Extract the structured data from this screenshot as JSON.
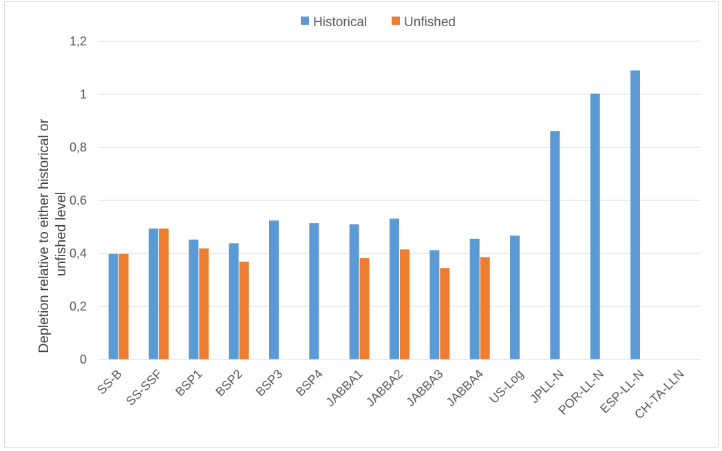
{
  "chart_data": {
    "type": "bar",
    "title": "",
    "xlabel": "",
    "ylabel_lines": [
      "Depletion relative to either historical or",
      "unfished level"
    ],
    "ylim": [
      0,
      1.2
    ],
    "yticks": [
      "0",
      "0,2",
      "0,4",
      "0,6",
      "0,8",
      "1",
      "1,2"
    ],
    "ytick_values": [
      0,
      0.2,
      0.4,
      0.6,
      0.8,
      1.0,
      1.2
    ],
    "grid": true,
    "legend_position": "top-center",
    "categories": [
      "SS-B",
      "SS-SSF",
      "BSP1",
      "BSP2",
      "BSP3",
      "BSP4",
      "JABBA1",
      "JABBA2",
      "JABBA3",
      "JABBA4",
      "US-Log",
      "JPLL-N",
      "POR-LL-N",
      "ESP-LL-N",
      "CH-TA-LLN"
    ],
    "series": [
      {
        "name": "Historical",
        "color": "#5b9bd5",
        "values": [
          0.398,
          0.494,
          0.452,
          0.438,
          0.524,
          0.514,
          0.51,
          0.531,
          0.412,
          0.455,
          0.467,
          0.862,
          1.003,
          1.09,
          null
        ]
      },
      {
        "name": "Unfished",
        "color": "#ed7d31",
        "values": [
          0.398,
          0.494,
          0.419,
          0.369,
          null,
          null,
          0.382,
          0.415,
          0.345,
          0.386,
          null,
          null,
          null,
          null,
          null
        ]
      }
    ]
  }
}
